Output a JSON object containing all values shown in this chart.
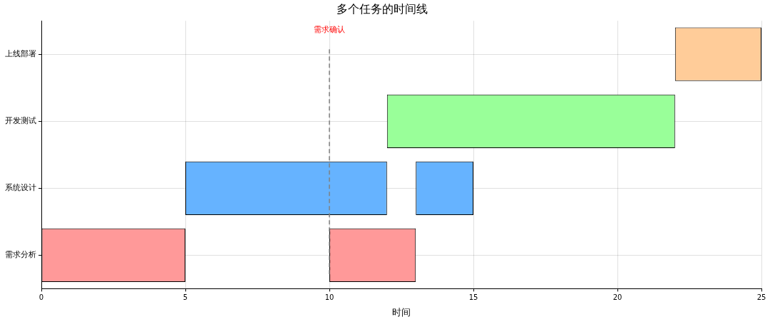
{
  "chart_data": {
    "type": "bar",
    "orientation": "horizontal",
    "title": "多个任务的时间线",
    "xlabel": "时间",
    "categories": [
      "上线部署",
      "开发测试",
      "系统设计",
      "需求分析"
    ],
    "series": [
      {
        "colors": [
          "#ffcc99",
          "#99ff99",
          "#66b3ff",
          "#ff9999"
        ],
        "base": [
          22,
          12,
          5,
          0
        ],
        "values": [
          3,
          10,
          7,
          5
        ]
      },
      {
        "colors": [
          "#ffcc99",
          "#99ff99",
          "#66b3ff",
          "#ff9999"
        ],
        "base": [
          null,
          null,
          13,
          10
        ],
        "values": [
          null,
          null,
          2,
          3
        ]
      }
    ],
    "xlim": [
      0,
      25
    ],
    "xticks": [
      0,
      5,
      10,
      15,
      20,
      25
    ],
    "ref_lines": [
      {
        "axis": "x",
        "value": 10,
        "label": "需求确认",
        "color": "#808080",
        "line_style": "dashed"
      }
    ],
    "grid": true,
    "legend": false
  }
}
